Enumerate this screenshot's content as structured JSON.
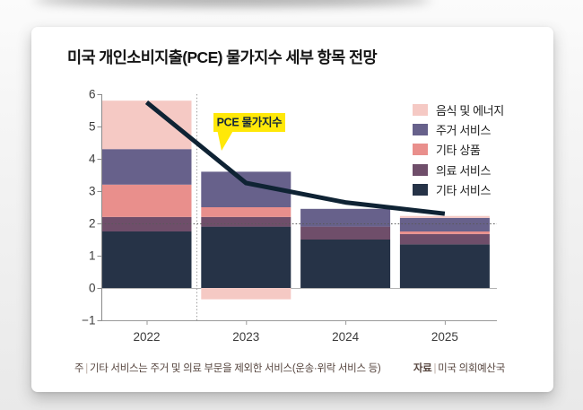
{
  "page": {
    "title": "미국 개인소비지출(PCE) 물가지수 세부 항목 전망",
    "note_label": "주",
    "note_text": "기타 서비스는 주거 및 의료 부문을 제외한 서비스(운송·위락 서비스 등)",
    "source_label": "자료",
    "source_text": "미국 의회예산국"
  },
  "chart_data": {
    "type": "bar",
    "subtype": "stacked-bars-with-line",
    "title": "미국 개인소비지출(PCE) 물가지수 세부 항목 전망",
    "categories": [
      "2022",
      "2023",
      "2024",
      "2025"
    ],
    "series": [
      {
        "name": "기타 서비스",
        "color": "#263347",
        "values": [
          1.75,
          1.9,
          1.5,
          1.35
        ]
      },
      {
        "name": "의료 서비스",
        "color": "#6f4e6a",
        "values": [
          0.45,
          0.3,
          0.4,
          0.32
        ]
      },
      {
        "name": "기타 상품",
        "color": "#e98f8c",
        "values": [
          1.0,
          0.3,
          0,
          0.08
        ]
      },
      {
        "name": "주거 서비스",
        "color": "#67618b",
        "values": [
          1.1,
          1.1,
          0.55,
          0.42
        ]
      },
      {
        "name": "음식 및 에너지",
        "color": "#f5c9c4",
        "values": [
          1.5,
          -0.35,
          0,
          0.06
        ]
      }
    ],
    "line": {
      "name": "PCE 물가지수",
      "color": "#0f2334",
      "values": [
        5.75,
        3.25,
        2.65,
        2.3
      ]
    },
    "ylim": [
      -1,
      6
    ],
    "ytick_step": 1,
    "dotted_gridline_y": 2,
    "forecast_separator_after": "2022",
    "legend_order": [
      "음식 및 에너지",
      "주거 서비스",
      "기타 상품",
      "의료 서비스",
      "기타 서비스"
    ],
    "legend_position": "top-right",
    "annotation": {
      "text": "PCE 물가지수",
      "bg": "#ffe808"
    }
  }
}
